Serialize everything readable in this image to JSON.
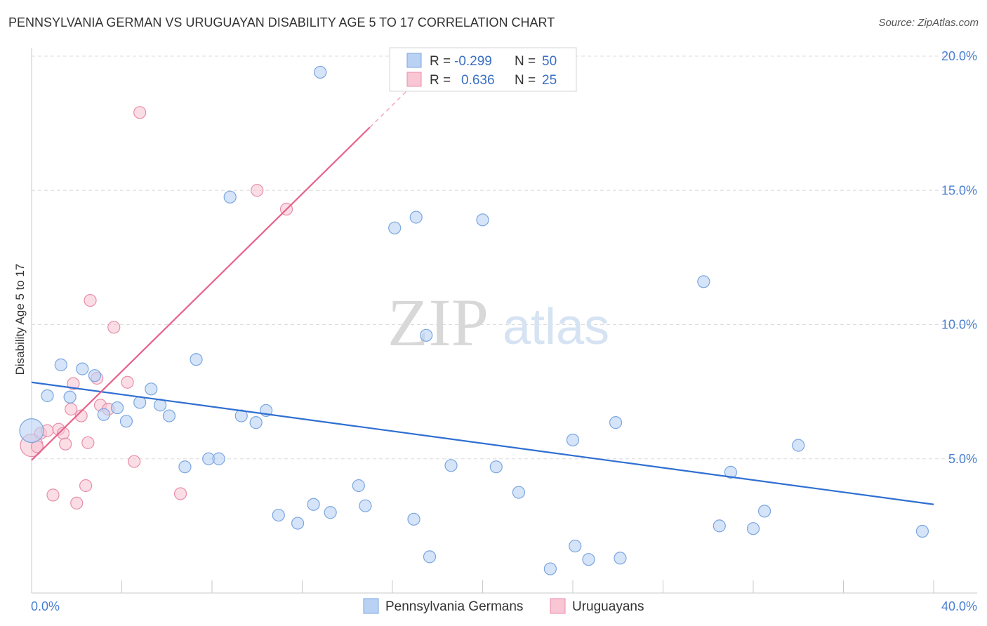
{
  "title": "PENNSYLVANIA GERMAN VS URUGUAYAN DISABILITY AGE 5 TO 17 CORRELATION CHART",
  "source": "Source: ZipAtlas.com",
  "watermark": {
    "zip": "ZIP",
    "atlas": "atlas"
  },
  "colors": {
    "blue_fill": "#b9d2f3",
    "blue_stroke": "#7aa6e0",
    "blue_line": "#2f6fd1",
    "pink_fill": "#f8c6d5",
    "pink_stroke": "#e88ea9",
    "pink_line": "#e8628b",
    "grid": "#dcdcdc",
    "tick_text": "#4a7fd0"
  },
  "legend": {
    "r_label": "R =",
    "n_label": "N =",
    "rows": [
      {
        "series": "Pennsylvania Germans",
        "r": "-0.299",
        "n": "50"
      },
      {
        "series": "Uruguayans",
        "r": "0.636",
        "n": "25"
      }
    ]
  },
  "chart_data": {
    "type": "scatter",
    "title": "PENNSYLVANIA GERMAN VS URUGUAYAN DISABILITY AGE 5 TO 17 CORRELATION CHART",
    "xlabel": "",
    "ylabel": "Disability Age 5 to 17",
    "xlim": [
      0,
      40
    ],
    "ylim": [
      0,
      20
    ],
    "x_tick_labels": [
      "0.0%",
      "40.0%"
    ],
    "y_ticks": [
      5,
      10,
      15,
      20
    ],
    "y_tick_labels": [
      "5.0%",
      "10.0%",
      "15.0%",
      "20.0%"
    ],
    "grid": true,
    "legend_position": "top-center",
    "series": [
      {
        "name": "Pennsylvania Germans",
        "trend": {
          "x0": 0,
          "y0": 7.85,
          "x1": 40,
          "y1": 3.3
        },
        "points": [
          {
            "x": 0.0,
            "y": 6.05,
            "big": true
          },
          {
            "x": 0.7,
            "y": 7.35
          },
          {
            "x": 1.3,
            "y": 8.5
          },
          {
            "x": 1.7,
            "y": 7.3
          },
          {
            "x": 2.25,
            "y": 8.35
          },
          {
            "x": 2.8,
            "y": 8.1
          },
          {
            "x": 3.2,
            "y": 6.65
          },
          {
            "x": 3.8,
            "y": 6.9
          },
          {
            "x": 4.2,
            "y": 6.4
          },
          {
            "x": 4.8,
            "y": 7.1
          },
          {
            "x": 5.3,
            "y": 7.6
          },
          {
            "x": 5.7,
            "y": 7.0
          },
          {
            "x": 6.1,
            "y": 6.6
          },
          {
            "x": 6.8,
            "y": 4.7
          },
          {
            "x": 7.3,
            "y": 8.7
          },
          {
            "x": 7.85,
            "y": 5.0
          },
          {
            "x": 8.3,
            "y": 5.0
          },
          {
            "x": 8.8,
            "y": 14.75
          },
          {
            "x": 9.3,
            "y": 6.6
          },
          {
            "x": 9.95,
            "y": 6.35
          },
          {
            "x": 10.4,
            "y": 6.8
          },
          {
            "x": 10.95,
            "y": 2.9
          },
          {
            "x": 11.8,
            "y": 2.6
          },
          {
            "x": 12.5,
            "y": 3.3
          },
          {
            "x": 12.8,
            "y": 19.4
          },
          {
            "x": 13.25,
            "y": 3.0
          },
          {
            "x": 14.5,
            "y": 4.0
          },
          {
            "x": 14.8,
            "y": 3.25
          },
          {
            "x": 16.1,
            "y": 13.6
          },
          {
            "x": 16.95,
            "y": 2.75
          },
          {
            "x": 17.05,
            "y": 14.0
          },
          {
            "x": 17.5,
            "y": 9.6
          },
          {
            "x": 17.65,
            "y": 1.35
          },
          {
            "x": 18.6,
            "y": 4.75
          },
          {
            "x": 20.0,
            "y": 13.9
          },
          {
            "x": 20.6,
            "y": 4.7
          },
          {
            "x": 21.6,
            "y": 3.75
          },
          {
            "x": 23.0,
            "y": 0.9
          },
          {
            "x": 24.0,
            "y": 5.7
          },
          {
            "x": 24.1,
            "y": 1.75
          },
          {
            "x": 24.7,
            "y": 1.25
          },
          {
            "x": 25.9,
            "y": 6.35
          },
          {
            "x": 26.1,
            "y": 1.3
          },
          {
            "x": 29.8,
            "y": 11.6
          },
          {
            "x": 30.5,
            "y": 2.5
          },
          {
            "x": 31.0,
            "y": 4.5
          },
          {
            "x": 32.0,
            "y": 2.4
          },
          {
            "x": 32.5,
            "y": 3.05
          },
          {
            "x": 34.0,
            "y": 5.5
          },
          {
            "x": 39.5,
            "y": 2.3
          }
        ]
      },
      {
        "name": "Uruguayans",
        "trend": {
          "x0": 0,
          "y0": 4.95,
          "x1": 15,
          "y1": 17.35,
          "dash_to_x": 17,
          "dash_to_y": 19.0
        },
        "points": [
          {
            "x": 0.0,
            "y": 5.5,
            "big": true
          },
          {
            "x": 0.4,
            "y": 5.95
          },
          {
            "x": 0.7,
            "y": 6.05
          },
          {
            "x": 0.95,
            "y": 3.65
          },
          {
            "x": 1.2,
            "y": 6.1
          },
          {
            "x": 1.4,
            "y": 5.95
          },
          {
            "x": 1.5,
            "y": 5.55
          },
          {
            "x": 1.75,
            "y": 6.85
          },
          {
            "x": 1.85,
            "y": 7.8
          },
          {
            "x": 2.0,
            "y": 3.35
          },
          {
            "x": 2.2,
            "y": 6.6
          },
          {
            "x": 2.4,
            "y": 4.0
          },
          {
            "x": 2.5,
            "y": 5.6
          },
          {
            "x": 2.6,
            "y": 10.9
          },
          {
            "x": 2.9,
            "y": 8.0
          },
          {
            "x": 3.05,
            "y": 7.0
          },
          {
            "x": 3.4,
            "y": 6.85
          },
          {
            "x": 3.65,
            "y": 9.9
          },
          {
            "x": 4.25,
            "y": 7.85
          },
          {
            "x": 4.55,
            "y": 4.9
          },
          {
            "x": 4.8,
            "y": 17.9
          },
          {
            "x": 6.6,
            "y": 3.7
          },
          {
            "x": 10.0,
            "y": 15.0
          },
          {
            "x": 11.3,
            "y": 14.3
          },
          {
            "x": 0.25,
            "y": 5.45
          }
        ]
      }
    ]
  },
  "bottom_legend": [
    {
      "label": "Pennsylvania Germans"
    },
    {
      "label": "Uruguayans"
    }
  ]
}
